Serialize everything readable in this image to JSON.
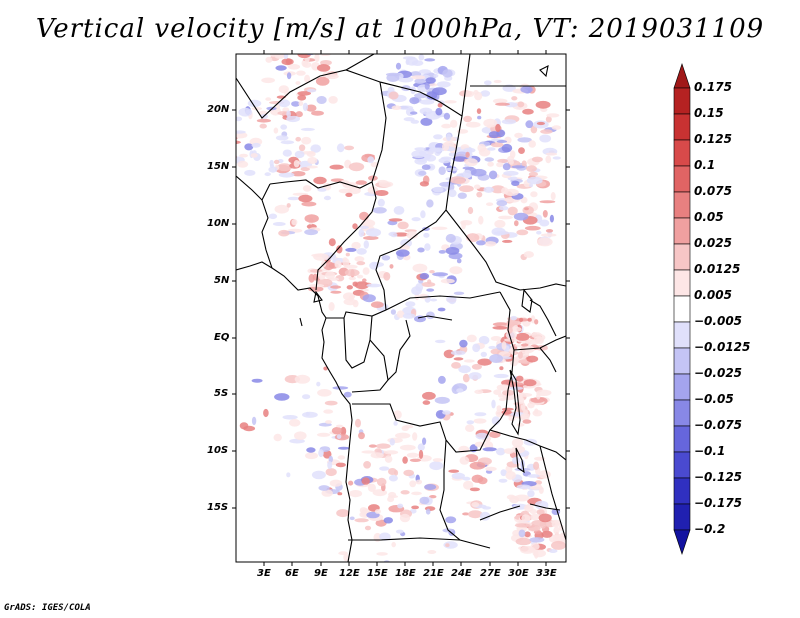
{
  "title": "Vertical velocity [m/s] at 1000hPa, VT: 2019031109",
  "footer": "GrADS: IGES/COLA",
  "map": {
    "variable": "Vertical velocity",
    "units": "m/s",
    "level": "1000hPa",
    "valid_time": "2019031109",
    "lat_ticks": [
      "20N",
      "15N",
      "10N",
      "5N",
      "EQ",
      "5S",
      "10S",
      "15S"
    ],
    "lon_ticks": [
      "3E",
      "6E",
      "9E",
      "12E",
      "15E",
      "18E",
      "21E",
      "24E",
      "27E",
      "30E",
      "33E"
    ]
  },
  "colorbar": {
    "labels": [
      "0.175",
      "0.15",
      "0.125",
      "0.1",
      "0.075",
      "0.05",
      "0.025",
      "0.0125",
      "0.005",
      "−0.005",
      "−0.0125",
      "−0.025",
      "−0.05",
      "−0.075",
      "−0.1",
      "−0.125",
      "−0.175",
      "−0.2"
    ],
    "colors": [
      "#a01818",
      "#b52222",
      "#c83232",
      "#d84a4a",
      "#e06464",
      "#e88080",
      "#f0a0a0",
      "#f7c6c6",
      "#fde6e6",
      "#ffffff",
      "#e0e0fb",
      "#c4c4f5",
      "#a4a4ee",
      "#8888e6",
      "#6666dc",
      "#4a4ad0",
      "#3030c0",
      "#2020b0",
      "#1212a0"
    ]
  }
}
